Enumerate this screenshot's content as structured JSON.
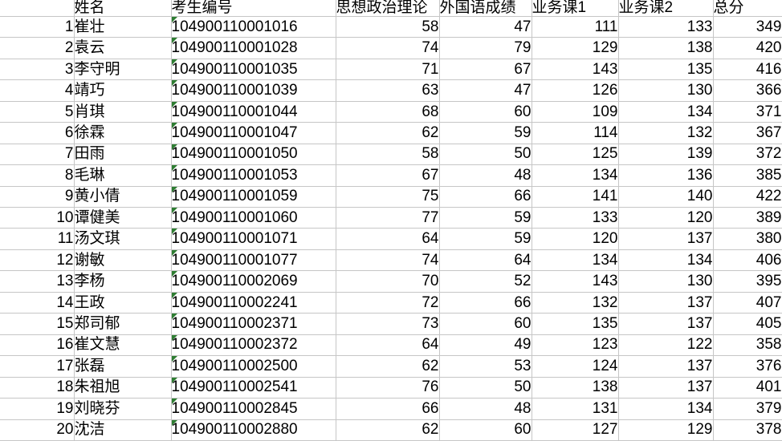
{
  "app": {
    "kind": "spreadsheet-grade-table"
  },
  "colors": {
    "gridline": "#c6c6c6",
    "text": "#000000",
    "background": "#ffffff",
    "stored_as_text_indicator": "#2e7d32"
  },
  "table": {
    "headers": [
      "",
      "姓名",
      "考生编号",
      "思想政治理论",
      "外国语成绩",
      "业务课1",
      "业务课2",
      "总分"
    ],
    "rows": [
      {
        "num": 1,
        "name": "崔壮",
        "id": "104900110001016",
        "politics": 58,
        "foreign": 47,
        "course1": 111,
        "course2": 133,
        "total": 349
      },
      {
        "num": 2,
        "name": "袁云",
        "id": "104900110001028",
        "politics": 74,
        "foreign": 79,
        "course1": 129,
        "course2": 138,
        "total": 420
      },
      {
        "num": 3,
        "name": "李守明",
        "id": "104900110001035",
        "politics": 71,
        "foreign": 67,
        "course1": 143,
        "course2": 135,
        "total": 416
      },
      {
        "num": 4,
        "name": "靖巧",
        "id": "104900110001039",
        "politics": 63,
        "foreign": 47,
        "course1": 126,
        "course2": 130,
        "total": 366
      },
      {
        "num": 5,
        "name": "肖琪",
        "id": "104900110001044",
        "politics": 68,
        "foreign": 60,
        "course1": 109,
        "course2": 134,
        "total": 371
      },
      {
        "num": 6,
        "name": "徐霖",
        "id": "104900110001047",
        "politics": 62,
        "foreign": 59,
        "course1": 114,
        "course2": 132,
        "total": 367
      },
      {
        "num": 7,
        "name": "田雨",
        "id": "104900110001050",
        "politics": 58,
        "foreign": 50,
        "course1": 125,
        "course2": 139,
        "total": 372
      },
      {
        "num": 8,
        "name": "毛琳",
        "id": "104900110001053",
        "politics": 67,
        "foreign": 48,
        "course1": 134,
        "course2": 136,
        "total": 385
      },
      {
        "num": 9,
        "name": "黄小倩",
        "id": "104900110001059",
        "politics": 75,
        "foreign": 66,
        "course1": 141,
        "course2": 140,
        "total": 422
      },
      {
        "num": 10,
        "name": "谭健美",
        "id": "104900110001060",
        "politics": 77,
        "foreign": 59,
        "course1": 133,
        "course2": 120,
        "total": 389
      },
      {
        "num": 11,
        "name": "汤文琪",
        "id": "104900110001071",
        "politics": 64,
        "foreign": 59,
        "course1": 120,
        "course2": 137,
        "total": 380
      },
      {
        "num": 12,
        "name": "谢敏",
        "id": "104900110001077",
        "politics": 74,
        "foreign": 64,
        "course1": 134,
        "course2": 134,
        "total": 406
      },
      {
        "num": 13,
        "name": "李杨",
        "id": "104900110002069",
        "politics": 70,
        "foreign": 52,
        "course1": 143,
        "course2": 130,
        "total": 395
      },
      {
        "num": 14,
        "name": "王政",
        "id": "104900110002241",
        "politics": 72,
        "foreign": 66,
        "course1": 132,
        "course2": 137,
        "total": 407
      },
      {
        "num": 15,
        "name": "郑司郁",
        "id": "104900110002371",
        "politics": 73,
        "foreign": 60,
        "course1": 135,
        "course2": 137,
        "total": 405
      },
      {
        "num": 16,
        "name": "崔文慧",
        "id": "104900110002372",
        "politics": 64,
        "foreign": 49,
        "course1": 123,
        "course2": 122,
        "total": 358
      },
      {
        "num": 17,
        "name": "张磊",
        "id": "104900110002500",
        "politics": 62,
        "foreign": 53,
        "course1": 124,
        "course2": 137,
        "total": 376
      },
      {
        "num": 18,
        "name": "朱祖旭",
        "id": "104900110002541",
        "politics": 76,
        "foreign": 50,
        "course1": 138,
        "course2": 137,
        "total": 401
      },
      {
        "num": 19,
        "name": "刘晓芬",
        "id": "104900110002845",
        "politics": 66,
        "foreign": 48,
        "course1": 131,
        "course2": 134,
        "total": 379
      },
      {
        "num": 20,
        "name": "沈洁",
        "id": "104900110002880",
        "politics": 62,
        "foreign": 60,
        "course1": 127,
        "course2": 129,
        "total": 378
      }
    ]
  }
}
